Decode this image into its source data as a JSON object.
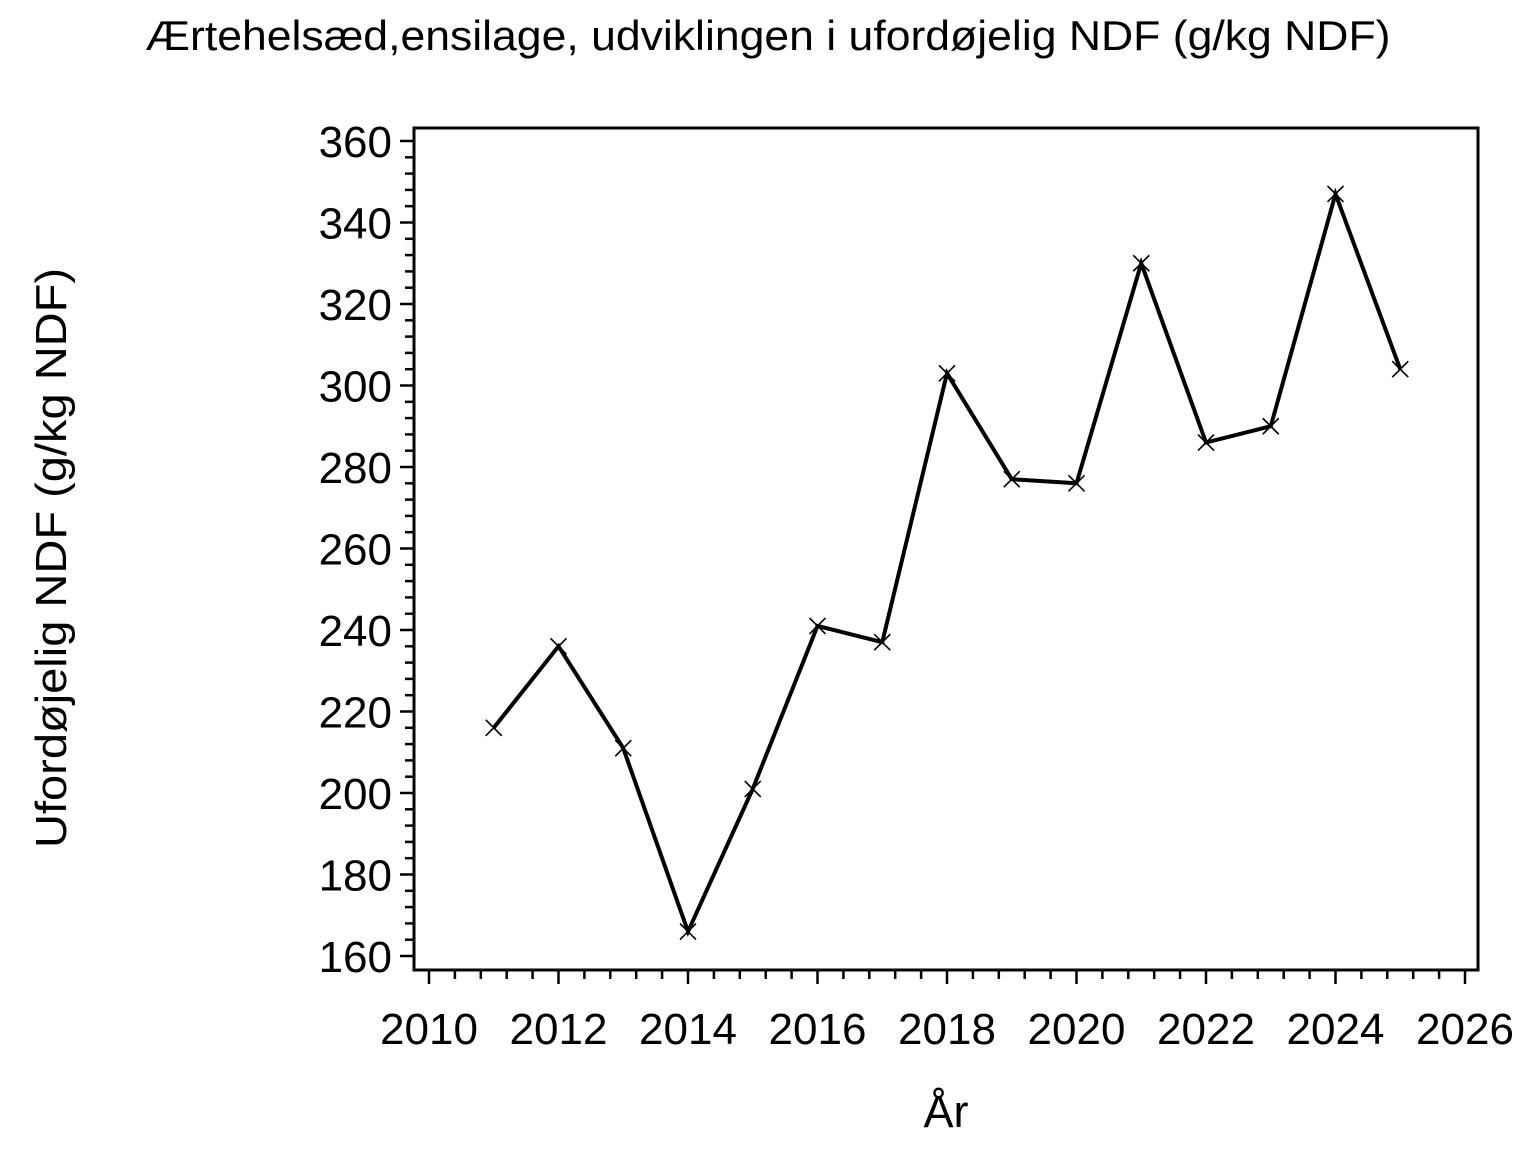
{
  "page": {
    "background": "#ffffff"
  },
  "chart_data": {
    "type": "line",
    "title": "Ærtehelsæd,ensilage, udviklingen i ufordøjelig NDF (g/kg NDF)",
    "xlabel": "År",
    "ylabel": "Ufordøjelig NDF (g/kg NDF)",
    "x": [
      2011,
      2012,
      2013,
      2014,
      2015,
      2016,
      2017,
      2018,
      2019,
      2020,
      2021,
      2022,
      2023,
      2024,
      2025
    ],
    "values": [
      216,
      236,
      211,
      166,
      201,
      241,
      237,
      303,
      277,
      276,
      330,
      286,
      290,
      347,
      304
    ],
    "x_ticks": [
      2010,
      2012,
      2014,
      2016,
      2018,
      2020,
      2022,
      2024,
      2026
    ],
    "y_ticks": [
      160,
      180,
      200,
      220,
      240,
      260,
      280,
      300,
      320,
      340,
      360
    ],
    "x_minor_ticks_between_majors": 4,
    "y_minor_ticks_between_majors": 4,
    "xlim": [
      2009.8,
      2026.2
    ],
    "ylim": [
      156,
      363
    ],
    "grid": false,
    "legend": false,
    "marker": "x",
    "line_color": "#000000",
    "axis_color": "#000000",
    "text_color": "#000000",
    "background_color": "#ffffff"
  }
}
